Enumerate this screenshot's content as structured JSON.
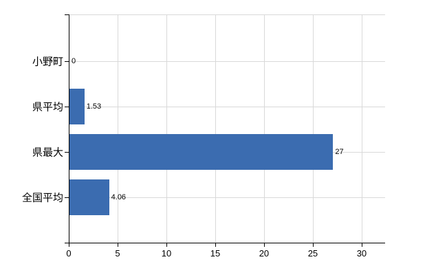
{
  "chart_data": {
    "type": "bar",
    "orientation": "horizontal",
    "categories": [
      "小野町",
      "県平均",
      "県最大",
      "全国平均"
    ],
    "values": [
      0,
      1.53,
      27,
      4.06
    ],
    "value_labels": [
      "0",
      "1.53",
      "27",
      "4.06"
    ],
    "xticks": [
      0,
      5,
      10,
      15,
      20,
      25,
      30
    ],
    "xtick_labels": [
      "0",
      "5",
      "10",
      "15",
      "20",
      "25",
      "30"
    ],
    "xlim": [
      0,
      32.4
    ],
    "bar_color": "#3b6cb0",
    "gridline_color": "#d9d9d9",
    "axis_color": "#000000",
    "grid": true,
    "legend": false
  }
}
